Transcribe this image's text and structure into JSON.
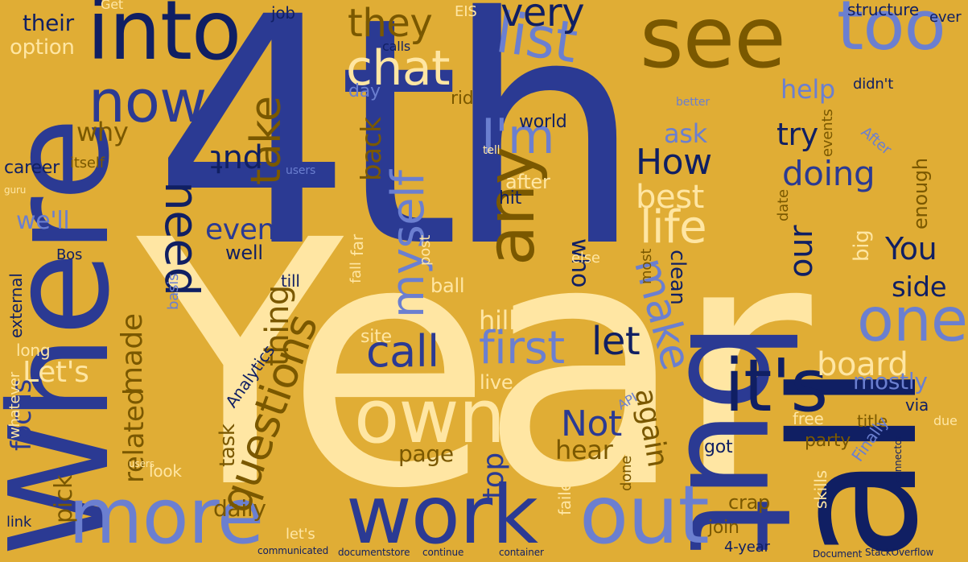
{
  "palette": {
    "background": "#e0ad35",
    "royal_blue": "#2b3a93",
    "cream": "#ffe6a3",
    "periwinkle": "#6b7fd0",
    "navy": "#101f63",
    "dark_gold": "#7a5800"
  },
  "words": {
    "w_4th": "4th",
    "w_year": "Year",
    "w_where": "Where",
    "w_all": "all",
    "w_but": "but",
    "w_see": "see",
    "w_into": "into",
    "w_too": "too",
    "w_more": "more",
    "w_work": "work",
    "w_out": "out",
    "w_own": "own",
    "w_its": "it's",
    "w_one": "one",
    "w_list": "list",
    "w_any": "any",
    "w_now": "now",
    "w_chat": "chat",
    "w_questions": "questions",
    "w_im": "I'm",
    "w_myself": "myself",
    "w_make": "make",
    "w_life": "life",
    "w_call": "call",
    "w_first": "first",
    "w_let": "let",
    "w_board": "board",
    "w_not": "Not",
    "w_how": "How",
    "w_best": "best",
    "w_need": "need",
    "w_take": "take",
    "w_very": "very",
    "w_they": "they",
    "w_doing": "doing",
    "w_you": "You",
    "w_our": "our",
    "w_side": "side",
    "w_mostly": "mostly",
    "w_thing": "thing",
    "w_made": "made",
    "w_lets": "Let's",
    "w_focus": "focus",
    "w_pick": "pick",
    "w_related": "related",
    "w_daily": "daily",
    "w_task": "task",
    "w_page": "page",
    "w_top": "top",
    "w_again": "again",
    "w_hear": "hear",
    "w_even": "even",
    "w_put": "put",
    "w_why": "why",
    "w_career": "career",
    "w_well_short": "we'll",
    "w_help": "help",
    "w_ask": "ask",
    "w_try": "try",
    "w_enough": "enough",
    "w_clean": "clean",
    "w_who": "who",
    "w_hill": "hill",
    "w_back": "back",
    "w_ball": "ball",
    "w_site": "site",
    "w_live": "live",
    "w_world": "world",
    "w_after": "after",
    "w_hit": "hit",
    "w_rid": "rid",
    "w_day": "day",
    "w_job": "job",
    "w_their": "their",
    "w_option": "option",
    "w_get": "Get",
    "w_calls": "calls",
    "w_structure": "structure",
    "w_eis": "EIS",
    "w_ever": "ever",
    "w_didnt": "didn't",
    "w_after2": "After",
    "w_events": "events",
    "w_date": "date",
    "w_big": "big",
    "w_free": "free",
    "w_title": "title",
    "w_via": "via",
    "w_finally": "Finally",
    "w_party": "party",
    "w_skills": "skills",
    "w_crap": "crap",
    "w_join": "join",
    "w_4year": "4-year",
    "w_failed": "failed",
    "w_done": "done",
    "w_got": "got",
    "w_lets_lower": "let's",
    "w_link": "link",
    "w_look": "look",
    "w_whatever": "whatever",
    "w_external": "external",
    "w_long": "long",
    "w_analytics": "Analytics",
    "w_era": "era",
    "w_till": "till",
    "w_well": "well",
    "w_basis": "basis",
    "w_bos": "Bos",
    "w_far": "far",
    "w_fall": "fall",
    "w_itself": "itself",
    "w_post": "post",
    "w_else": "else",
    "w_most": "most",
    "w_due": "due",
    "w_api": "API",
    "w_stackoverflow": "StackOverflow",
    "w_connector": "connector",
    "w_communicated": "communicated",
    "w_document": "Document",
    "w_users": "users",
    "w_better": "better",
    "w_tell": "tell",
    "w_users2": "users",
    "w_guru": "guru",
    "w_continue": "continue",
    "w_container": "container",
    "w_documentstore": "documentstore"
  }
}
